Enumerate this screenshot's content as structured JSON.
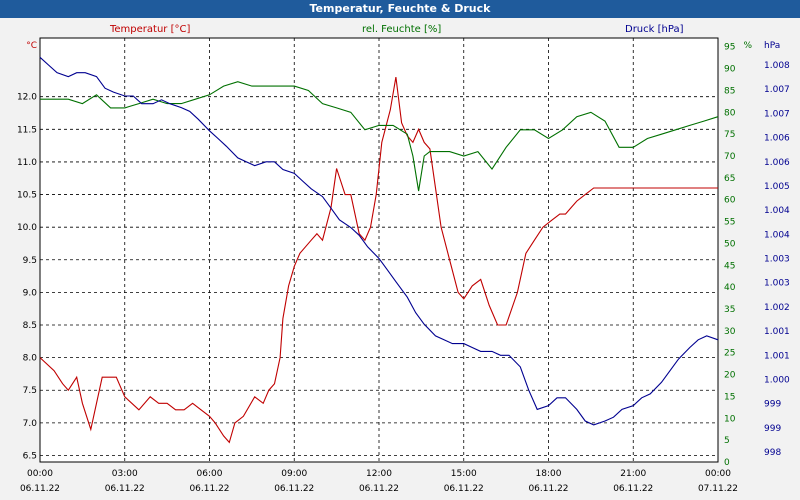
{
  "window": {
    "title": "Temperatur, Feuchte & Druck"
  },
  "chart_data": {
    "type": "line",
    "title": "Temperatur, Feuchte & Druck",
    "grid": true,
    "colors": {
      "temperature": "#c00000",
      "humidity": "#007000",
      "pressure": "#000090",
      "grid": "#000000",
      "title_bar": "#1f5b9c"
    },
    "x_ticks": [
      {
        "time": "00:00",
        "date": "06.11.22"
      },
      {
        "time": "03:00",
        "date": "06.11.22"
      },
      {
        "time": "06:00",
        "date": "06.11.22"
      },
      {
        "time": "09:00",
        "date": "06.11.22"
      },
      {
        "time": "12:00",
        "date": "06.11.22"
      },
      {
        "time": "15:00",
        "date": "06.11.22"
      },
      {
        "time": "18:00",
        "date": "06.11.22"
      },
      {
        "time": "21:00",
        "date": "06.11.22"
      },
      {
        "time": "00:00",
        "date": "07.11.22"
      }
    ],
    "axes": {
      "temperature": {
        "label": "Temperatur [°C]",
        "unit": "°C",
        "range": [
          6.4,
          12.9
        ],
        "ticks": [
          "6.5",
          "7.0",
          "7.5",
          "8.0",
          "8.5",
          "9.0",
          "9.5",
          "10.0",
          "10.5",
          "11.0",
          "11.5",
          "12.0"
        ]
      },
      "humidity": {
        "label": "rel. Feuchte [%]",
        "unit": "%",
        "range": [
          0,
          97
        ],
        "ticks": [
          "0",
          "5",
          "10",
          "15",
          "20",
          "25",
          "30",
          "35",
          "40",
          "45",
          "50",
          "55",
          "60",
          "65",
          "70",
          "75",
          "80",
          "85",
          "90",
          "95"
        ]
      },
      "pressure": {
        "label": "Druck [hPa]",
        "unit": "hPa",
        "ticks": [
          "998",
          "999",
          "999",
          "1.000",
          "1.001",
          "1.001",
          "1.002",
          "1.003",
          "1.003",
          "1.004",
          "1.004",
          "1.005",
          "1.006",
          "1.006",
          "1.007",
          "1.007",
          "1.008"
        ]
      }
    },
    "series": [
      {
        "name": "Temperatur [°C]",
        "axis": "temperature",
        "x_hours": [
          0,
          0.5,
          0.8,
          1.0,
          1.3,
          1.5,
          1.8,
          2.2,
          2.7,
          3.0,
          3.5,
          3.9,
          4.2,
          4.5,
          4.8,
          5.1,
          5.4,
          5.7,
          6.0,
          6.2,
          6.5,
          6.7,
          6.9,
          7.2,
          7.6,
          7.9,
          8.1,
          8.3,
          8.5,
          8.6,
          8.8,
          9.0,
          9.2,
          9.4,
          9.6,
          9.8,
          10.0,
          10.3,
          10.5,
          10.8,
          11.0,
          11.2,
          11.3,
          11.5,
          11.7,
          11.9,
          12.1,
          12.4,
          12.6,
          12.8,
          13.0,
          13.2,
          13.4,
          13.6,
          13.8,
          14.0,
          14.2,
          14.5,
          14.8,
          15.0,
          15.3,
          15.6,
          15.9,
          16.2,
          16.5,
          16.9,
          17.2,
          17.5,
          17.8,
          18.1,
          18.4,
          18.6,
          18.8,
          19.0,
          19.3,
          19.6,
          19.9,
          20.2,
          20.5,
          20.7,
          21.0,
          21.3,
          21.6,
          21.9,
          22.2,
          22.5,
          22.8,
          23.1,
          23.4,
          23.7,
          24.0
        ],
        "values": [
          8.0,
          7.8,
          7.6,
          7.5,
          7.7,
          7.3,
          6.9,
          7.7,
          7.7,
          7.4,
          7.2,
          7.4,
          7.3,
          7.3,
          7.2,
          7.2,
          7.3,
          7.2,
          7.1,
          7.0,
          6.8,
          6.7,
          7.0,
          7.1,
          7.4,
          7.3,
          7.5,
          7.6,
          8.0,
          8.6,
          9.1,
          9.4,
          9.6,
          9.7,
          9.8,
          9.9,
          9.8,
          10.3,
          10.9,
          10.5,
          10.5,
          10.1,
          9.9,
          9.8,
          10.0,
          10.5,
          11.3,
          11.8,
          12.3,
          11.6,
          11.4,
          11.3,
          11.5,
          11.3,
          11.2,
          10.6,
          10.0,
          9.5,
          9.0,
          8.9,
          9.1,
          9.2,
          8.8,
          8.5,
          8.5,
          9.0,
          9.6,
          9.8,
          10.0,
          10.1,
          10.2,
          10.2,
          10.3,
          10.4,
          10.5,
          10.6,
          10.6,
          10.6,
          10.6,
          10.6,
          10.6,
          10.6,
          10.6,
          10.6,
          10.6,
          10.6,
          10.6,
          10.6,
          10.6,
          10.6,
          10.6
        ]
      },
      {
        "name": "rel. Feuchte [%]",
        "axis": "humidity",
        "x_hours": [
          0,
          0.5,
          1.0,
          1.5,
          2.0,
          2.5,
          3.0,
          3.5,
          4.0,
          4.5,
          5.0,
          5.5,
          6.0,
          6.5,
          7.0,
          7.5,
          8.0,
          8.5,
          9.0,
          9.5,
          10.0,
          10.5,
          11.0,
          11.5,
          12.0,
          12.5,
          13.0,
          13.2,
          13.4,
          13.6,
          13.8,
          14.0,
          14.5,
          15.0,
          15.5,
          16.0,
          16.5,
          17.0,
          17.5,
          18.0,
          18.5,
          19.0,
          19.5,
          20.0,
          20.5,
          21.0,
          21.5,
          22.0,
          22.5,
          23.0,
          23.5,
          24.0
        ],
        "values": [
          83,
          83,
          83,
          82,
          84,
          81,
          81,
          82,
          83,
          82,
          82,
          83,
          84,
          86,
          87,
          86,
          86,
          86,
          86,
          85,
          82,
          81,
          80,
          76,
          77,
          77,
          75,
          70,
          62,
          70,
          71,
          71,
          71,
          70,
          71,
          67,
          72,
          76,
          76,
          74,
          76,
          79,
          80,
          78,
          72,
          72,
          74,
          75,
          76,
          77,
          78,
          79
        ]
      },
      {
        "name": "Druck [hPa]",
        "axis": "pressure",
        "x_hours": [
          0,
          0.3,
          0.6,
          1.0,
          1.3,
          1.6,
          2.0,
          2.3,
          2.6,
          3.0,
          3.3,
          3.6,
          4.0,
          4.3,
          4.6,
          5.0,
          5.3,
          5.6,
          6.0,
          6.3,
          6.6,
          7.0,
          7.3,
          7.6,
          8.0,
          8.3,
          8.6,
          9.0,
          9.3,
          9.6,
          10.0,
          10.3,
          10.6,
          11.0,
          11.3,
          11.6,
          12.0,
          12.3,
          12.6,
          13.0,
          13.3,
          13.6,
          14.0,
          14.3,
          14.6,
          15.0,
          15.3,
          15.6,
          16.0,
          16.3,
          16.6,
          17.0,
          17.3,
          17.6,
          18.0,
          18.3,
          18.6,
          19.0,
          19.3,
          19.6,
          20.0,
          20.3,
          20.6,
          21.0,
          21.3,
          21.6,
          22.0,
          22.3,
          22.6,
          23.0,
          23.3,
          23.6,
          24.0
        ],
        "values": [
          1008.2,
          1008.0,
          1007.8,
          1007.7,
          1007.8,
          1007.8,
          1007.7,
          1007.4,
          1007.3,
          1007.2,
          1007.2,
          1007.0,
          1007.0,
          1007.1,
          1007.0,
          1006.9,
          1006.8,
          1006.6,
          1006.3,
          1006.1,
          1005.9,
          1005.6,
          1005.5,
          1005.4,
          1005.5,
          1005.5,
          1005.3,
          1005.2,
          1005.0,
          1004.8,
          1004.6,
          1004.3,
          1004.0,
          1003.8,
          1003.6,
          1003.3,
          1003.0,
          1002.7,
          1002.4,
          1002.0,
          1001.6,
          1001.3,
          1001.0,
          1000.9,
          1000.8,
          1000.8,
          1000.7,
          1000.6,
          1000.6,
          1000.5,
          1000.5,
          1000.2,
          999.6,
          999.1,
          999.2,
          999.4,
          999.4,
          999.1,
          998.8,
          998.7,
          998.8,
          998.9,
          999.1,
          999.2,
          999.4,
          999.5,
          999.8,
          1000.1,
          1000.4,
          1000.7,
          1000.9,
          1001.0,
          1000.9
        ]
      }
    ]
  }
}
